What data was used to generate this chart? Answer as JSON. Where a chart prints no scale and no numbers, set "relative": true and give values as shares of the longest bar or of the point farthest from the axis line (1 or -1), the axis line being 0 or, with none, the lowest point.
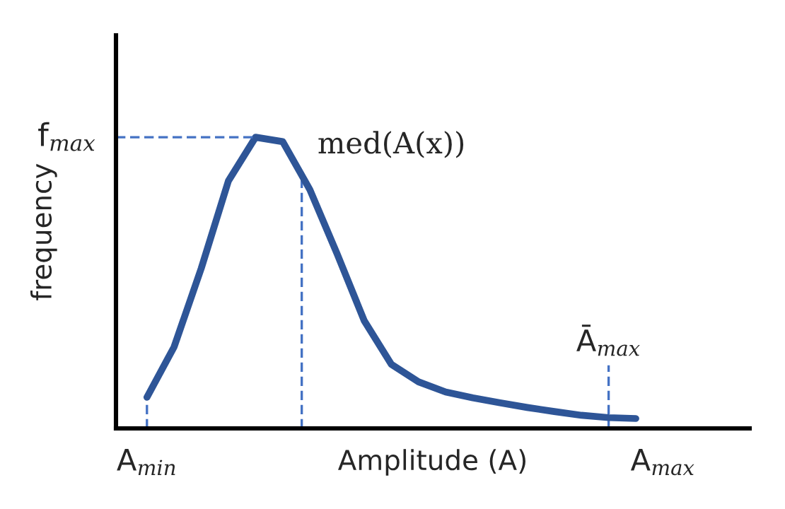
{
  "chart_data": {
    "type": "line",
    "relative": true,
    "xlabel": "Amplitude (A)",
    "ylabel": "frequency",
    "categories": [
      "A$_{min}$",
      null,
      null,
      null,
      null,
      null,
      null,
      null,
      null,
      null,
      null,
      null,
      null,
      null,
      null,
      null,
      null,
      null,
      null,
      "A$_{max}$"
    ],
    "series": [
      {
        "color": "#2e5597",
        "values": [
          0.107,
          0.28,
          0.55,
          0.85,
          1.0,
          0.985,
          0.82,
          0.6,
          0.37,
          0.22,
          0.16,
          0.125,
          0.105,
          0.088,
          0.072,
          0.058,
          0.045,
          0.037,
          0.034,
          null
        ]
      }
    ],
    "ref_lines": [
      {
        "axis": "y",
        "value": 1.0,
        "label": "f$_{max}$",
        "color": "#4472c4",
        "line_style": "dashed"
      }
    ],
    "annotations": [
      "med(A(x))",
      "Ā$_{max}$"
    ],
    "marker": "none",
    "line_style": "solid",
    "grid": false,
    "legend": false
  }
}
